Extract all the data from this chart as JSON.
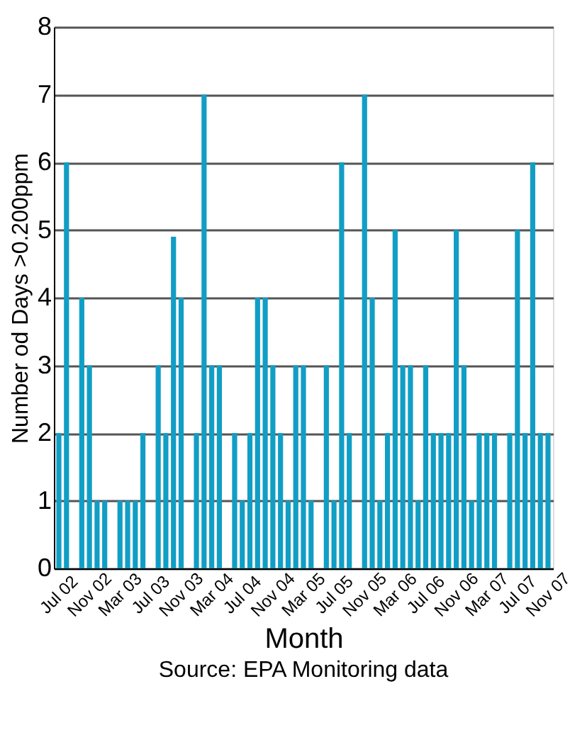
{
  "chart_data": {
    "type": "bar",
    "xlabel": "Month",
    "ylabel": "Number od Days >0.200ppm",
    "annotations": [
      "Source: EPA Monitoring data"
    ],
    "categories": [
      "Jul 02",
      null,
      null,
      null,
      "Nov 02",
      null,
      null,
      null,
      "Mar 03",
      null,
      null,
      null,
      "Jul 03",
      null,
      null,
      null,
      "Nov 03",
      null,
      null,
      null,
      "Mar 04",
      null,
      null,
      null,
      "Jul 04",
      null,
      null,
      null,
      "Nov 04",
      null,
      null,
      null,
      "Mar 05",
      null,
      null,
      null,
      "Jul 05",
      null,
      null,
      null,
      "Nov 05",
      null,
      null,
      null,
      "Mar 06",
      null,
      null,
      null,
      "Jul 06",
      null,
      null,
      null,
      "Nov 06",
      null,
      null,
      null,
      "Mar 07",
      null,
      null,
      null,
      "Jul 07",
      null,
      null,
      null,
      "Nov 07"
    ],
    "values": [
      2,
      6,
      0,
      4,
      3,
      1,
      1,
      0,
      1,
      1,
      1,
      2,
      0,
      3,
      2,
      4.9,
      4,
      0,
      2,
      7,
      3,
      3,
      0,
      2,
      1,
      2,
      4,
      4,
      3,
      2,
      1,
      3,
      3,
      1,
      0,
      3,
      1,
      6,
      2,
      0,
      7,
      4,
      1,
      2,
      5,
      3,
      3,
      1,
      3,
      2,
      2,
      2,
      5,
      3,
      1,
      2,
      2,
      2,
      0,
      2,
      5,
      2,
      6,
      2,
      2
    ],
    "color": "#119ec5",
    "ylim": [
      0,
      8
    ],
    "yticks": [
      0,
      1,
      2,
      3,
      4,
      5,
      6,
      7,
      8
    ],
    "grid": "y",
    "legend": false
  }
}
